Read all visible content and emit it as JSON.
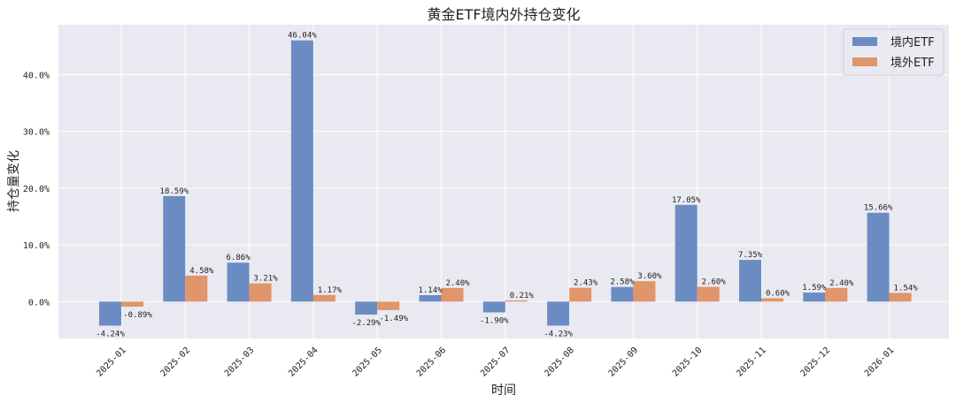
{
  "chart_data": {
    "type": "bar",
    "title": "黄金ETF境内外持仓变化",
    "xlabel": "时间",
    "ylabel": "持仓量变化",
    "categories": [
      "2025-01",
      "2025-02",
      "2025-03",
      "2025-04",
      "2025-05",
      "2025-06",
      "2025-07",
      "2025-08",
      "2025-09",
      "2025-10",
      "2025-11",
      "2025-12",
      "2026-01"
    ],
    "series": [
      {
        "name": "境内ETF",
        "color": "#6b8cc2",
        "values": [
          -4.24,
          18.59,
          6.86,
          46.04,
          -2.29,
          1.14,
          -1.9,
          -4.23,
          2.58,
          17.05,
          7.35,
          1.59,
          15.66
        ],
        "labels": [
          "-4.24%",
          "18.59%",
          "6.86%",
          "46.04%",
          "-2.29%",
          "1.14%",
          "-1.90%",
          "-4.23%",
          "2.58%",
          "17.05%",
          "7.35%",
          "1.59%",
          "15.66%"
        ]
      },
      {
        "name": "境外ETF",
        "color": "#e0956a",
        "values": [
          -0.89,
          4.58,
          3.21,
          1.17,
          -1.49,
          2.4,
          0.21,
          2.43,
          3.6,
          2.6,
          0.6,
          2.4,
          1.54
        ],
        "labels": [
          "-0.89%",
          "4.58%",
          "3.21%",
          "1.17%",
          "-1.49%",
          "2.40%",
          "0.21%",
          "2.43%",
          "3.60%",
          "2.60%",
          "0.60%",
          "2.40%",
          "1.54%"
        ]
      }
    ],
    "yticks": [
      0,
      10,
      20,
      30,
      40
    ],
    "ytick_labels": [
      "0.0%",
      "10.0%",
      "20.0%",
      "30.0%",
      "40.0%"
    ],
    "ylim": [
      -6.5,
      48.8
    ],
    "grid": true,
    "legend_position": "top-right",
    "background": "#e9e9f1"
  }
}
